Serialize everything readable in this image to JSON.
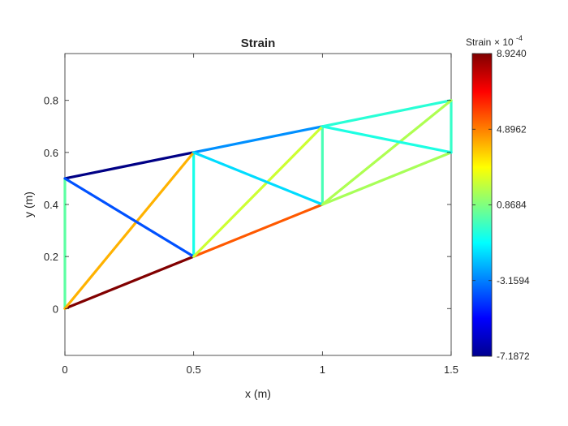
{
  "chart_data": {
    "type": "truss-strain-plot",
    "title": "Strain",
    "xlabel": "x (m)",
    "ylabel": "y (m)",
    "xlim": [
      0,
      1.5
    ],
    "ylim": [
      -0.18,
      0.98
    ],
    "xticks": [
      0,
      0.5,
      1,
      1.5
    ],
    "xtick_labels": [
      "0",
      "0.5",
      "1",
      "1.5"
    ],
    "yticks": [
      0,
      0.2,
      0.4,
      0.6,
      0.8
    ],
    "ytick_labels": [
      "0",
      "0.2",
      "0.4",
      "0.6",
      "0.8"
    ],
    "grid": false,
    "colormap": "jet",
    "colorbar": {
      "title": "Strain",
      "exponent_label": "× 10",
      "exponent_power": "-4",
      "clim": [
        -7.1872,
        8.924
      ],
      "ticks": [
        8.924,
        4.8962,
        0.8684,
        -3.1594,
        -7.1872
      ],
      "tick_labels": [
        "8.9240",
        "4.8962",
        "0.8684",
        "-3.1594",
        "-7.1872"
      ]
    },
    "members": [
      {
        "x1": 0,
        "y1": 0,
        "x2": 0.5,
        "y2": 0.2,
        "strain": 8.9
      },
      {
        "x1": 0.5,
        "y1": 0.2,
        "x2": 1,
        "y2": 0.4,
        "strain": 5.5
      },
      {
        "x1": 1,
        "y1": 0.4,
        "x2": 1.5,
        "y2": 0.6,
        "strain": 1.5
      },
      {
        "x1": 0,
        "y1": 0.5,
        "x2": 0.5,
        "y2": 0.6,
        "strain": -7.1
      },
      {
        "x1": 0.5,
        "y1": 0.6,
        "x2": 1,
        "y2": 0.7,
        "strain": -2.9
      },
      {
        "x1": 1,
        "y1": 0.7,
        "x2": 1.5,
        "y2": 0.8,
        "strain": -0.5
      },
      {
        "x1": 0,
        "y1": 0,
        "x2": 0,
        "y2": 0.5,
        "strain": 0.3
      },
      {
        "x1": 0.5,
        "y1": 0.2,
        "x2": 0.5,
        "y2": 0.6,
        "strain": -0.8
      },
      {
        "x1": 1,
        "y1": 0.4,
        "x2": 1,
        "y2": 0.7,
        "strain": 0.0
      },
      {
        "x1": 1.5,
        "y1": 0.6,
        "x2": 1.5,
        "y2": 0.8,
        "strain": -0.3
      },
      {
        "x1": 0,
        "y1": 0,
        "x2": 0.5,
        "y2": 0.6,
        "strain": 4.1
      },
      {
        "x1": 0,
        "y1": 0.5,
        "x2": 0.5,
        "y2": 0.2,
        "strain": -3.9
      },
      {
        "x1": 0.5,
        "y1": 0.2,
        "x2": 1,
        "y2": 0.7,
        "strain": 2.1
      },
      {
        "x1": 0.5,
        "y1": 0.6,
        "x2": 1,
        "y2": 0.4,
        "strain": -1.7
      },
      {
        "x1": 1,
        "y1": 0.4,
        "x2": 1.5,
        "y2": 0.8,
        "strain": 1.6
      },
      {
        "x1": 1,
        "y1": 0.7,
        "x2": 1.5,
        "y2": 0.6,
        "strain": -0.7
      }
    ]
  }
}
